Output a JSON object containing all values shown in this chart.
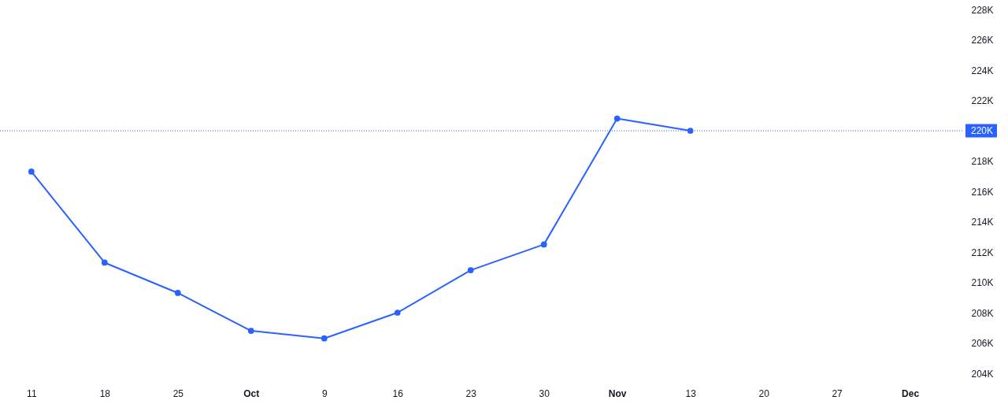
{
  "chart_data": {
    "type": "line",
    "x": [
      "--09-11",
      "--09-18",
      "--09-25",
      "--10-02",
      "--10-09",
      "--10-16",
      "--10-23",
      "--10-30",
      "--11-06",
      "--11-13"
    ],
    "series": [
      {
        "color": "#2962ff",
        "values": [
          217300,
          211300,
          209300,
          206800,
          206300,
          208000,
          210800,
          212500,
          220800,
          220000
        ]
      }
    ],
    "xlim": [
      "--09-08",
      "--12-09"
    ],
    "xticks": [
      {
        "value": "--09-11",
        "label": "11"
      },
      {
        "value": "--09-18",
        "label": "18"
      },
      {
        "value": "--09-25",
        "label": "25"
      },
      {
        "value": "--10-02",
        "label": "Oct"
      },
      {
        "value": "--10-09",
        "label": "9"
      },
      {
        "value": "--10-16",
        "label": "16"
      },
      {
        "value": "--10-23",
        "label": "23"
      },
      {
        "value": "--10-30",
        "label": "30"
      },
      {
        "value": "--11-06",
        "label": "Nov"
      },
      {
        "value": "--11-13",
        "label": "13"
      },
      {
        "value": "--11-20",
        "label": "20"
      },
      {
        "value": "--11-27",
        "label": "27"
      },
      {
        "value": "--12-04",
        "label": "Dec"
      }
    ],
    "ylim": [
      204000,
      228000
    ],
    "yticks": [
      {
        "value": 204000,
        "label": "204K"
      },
      {
        "value": 206000,
        "label": "206K"
      },
      {
        "value": 208000,
        "label": "208K"
      },
      {
        "value": 210000,
        "label": "210K"
      },
      {
        "value": 212000,
        "label": "212K"
      },
      {
        "value": 214000,
        "label": "214K"
      },
      {
        "value": 216000,
        "label": "216K"
      },
      {
        "value": 218000,
        "label": "218K"
      },
      {
        "value": 222000,
        "label": "222K"
      },
      {
        "value": 224000,
        "label": "224K"
      },
      {
        "value": 226000,
        "label": "226K"
      },
      {
        "value": 228000,
        "label": "228K"
      }
    ],
    "ref_lines": [
      {
        "axis": "y",
        "value": 220000,
        "label": "220K",
        "color": "#2962ff",
        "line_style": "dotted"
      }
    ],
    "marker": "circle",
    "line_style": "solid"
  }
}
